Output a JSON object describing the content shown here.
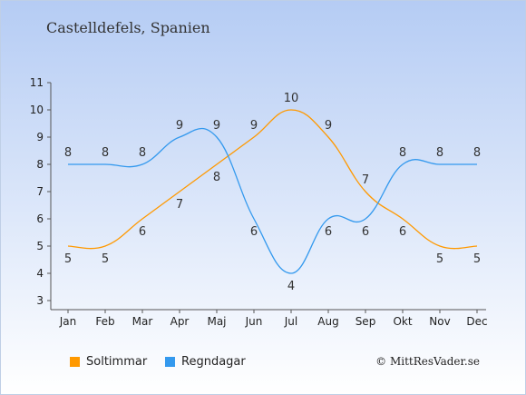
{
  "location": "Castelldefels, Spanien",
  "credit": "© MittResVader.se",
  "chart_data": {
    "type": "line",
    "categories": [
      "Jan",
      "Feb",
      "Mar",
      "Apr",
      "Maj",
      "Jun",
      "Jul",
      "Aug",
      "Sep",
      "Okt",
      "Nov",
      "Dec"
    ],
    "series": [
      {
        "name": "Soltimmar",
        "color": "#ff9900",
        "values": [
          5,
          5,
          6,
          7,
          8,
          9,
          10,
          9,
          7,
          6,
          5,
          5
        ]
      },
      {
        "name": "Regndagar",
        "color": "#3399ee",
        "values": [
          8,
          8,
          8,
          9,
          9,
          6,
          4,
          6,
          6,
          8,
          8,
          8
        ]
      }
    ],
    "ylim": [
      3,
      11
    ],
    "yticks": [
      3,
      4,
      5,
      6,
      7,
      8,
      9,
      10,
      11
    ],
    "grid": false,
    "legend_position": "bottom-left"
  }
}
